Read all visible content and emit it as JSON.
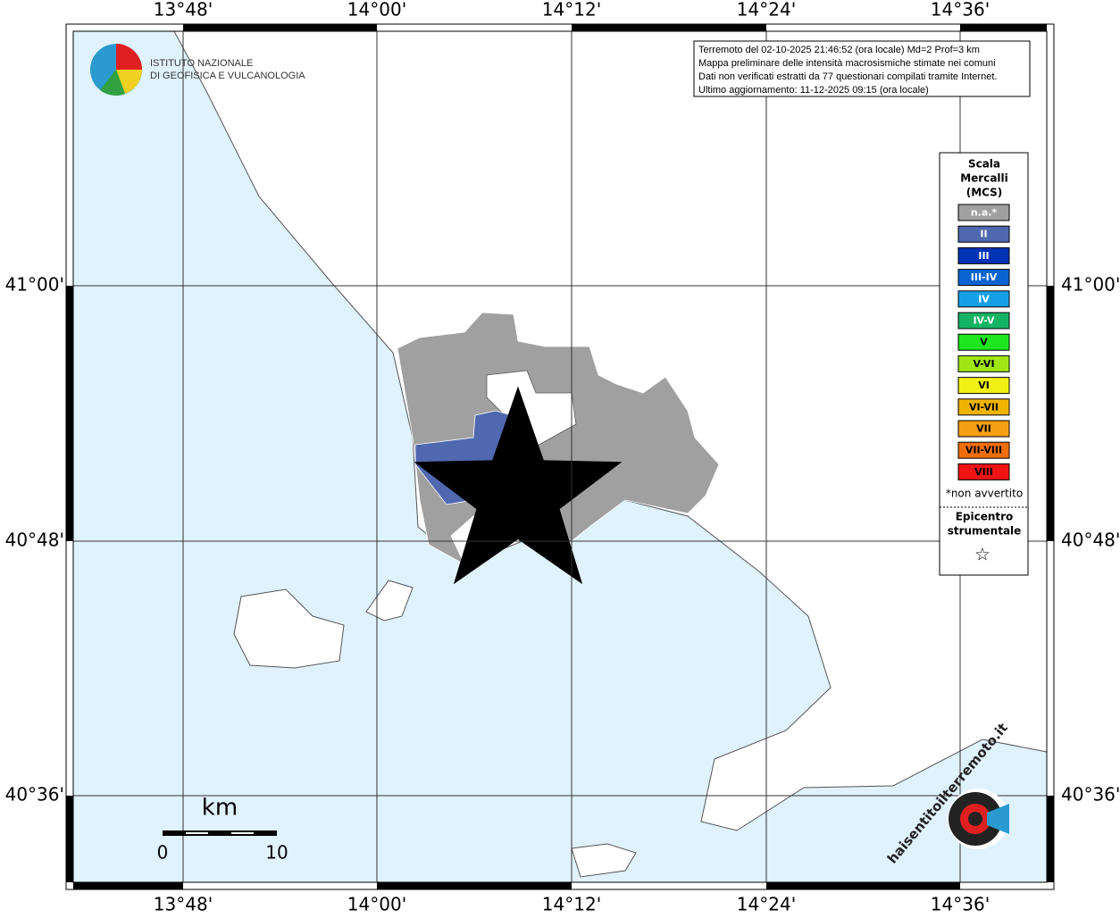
{
  "map": {
    "logo": [
      "ISTITUTO NAZIONALE",
      "DI GEOFISICA E VULCANOLOGIA"
    ],
    "info": [
      "Terremoto del 02-10-2025 21:46:52 (ora locale) Md=2 Prof=3 km",
      "Mappa preliminare delle intensità macrosismiche stimate nei comuni",
      "Dati non verificati estratti da 77 questionari compilati tramite Internet.",
      "Ultimo aggiornamento: 11-12-2025 09:15 (ora locale)"
    ],
    "lon_labels": [
      "13°48'",
      "14°00'",
      "14°12'",
      "14°24'",
      "14°36'"
    ],
    "lat_labels": [
      "41°00'",
      "40°48'",
      "40°36'"
    ],
    "legend": {
      "title": [
        "Scala",
        "Mercalli",
        "(MCS)"
      ],
      "items": [
        {
          "label": "n.a.*",
          "color": "#a0a0a0"
        },
        {
          "label": "II",
          "color": "#5068b0"
        },
        {
          "label": "III",
          "color": "#0032b4"
        },
        {
          "label": "III-IV",
          "color": "#0a64d2"
        },
        {
          "label": "IV",
          "color": "#14a0e6"
        },
        {
          "label": "IV-V",
          "color": "#14b464"
        },
        {
          "label": "V",
          "color": "#1ee61e"
        },
        {
          "label": "V-VI",
          "color": "#a0e614"
        },
        {
          "label": "VI",
          "color": "#f0f014"
        },
        {
          "label": "VI-VII",
          "color": "#f0b400"
        },
        {
          "label": "VII",
          "color": "#f5a014"
        },
        {
          "label": "VII-VIII",
          "color": "#f06e0a"
        },
        {
          "label": "VIII",
          "color": "#f01414"
        }
      ],
      "note": "*non avvertito",
      "epicenter": [
        "Epicentro",
        "strumentale"
      ],
      "epicenter_symbol": "☆"
    },
    "scale": {
      "unit": "km",
      "labels": [
        "0",
        "10"
      ]
    },
    "watermark": "haisentitoilterremoto.it"
  }
}
